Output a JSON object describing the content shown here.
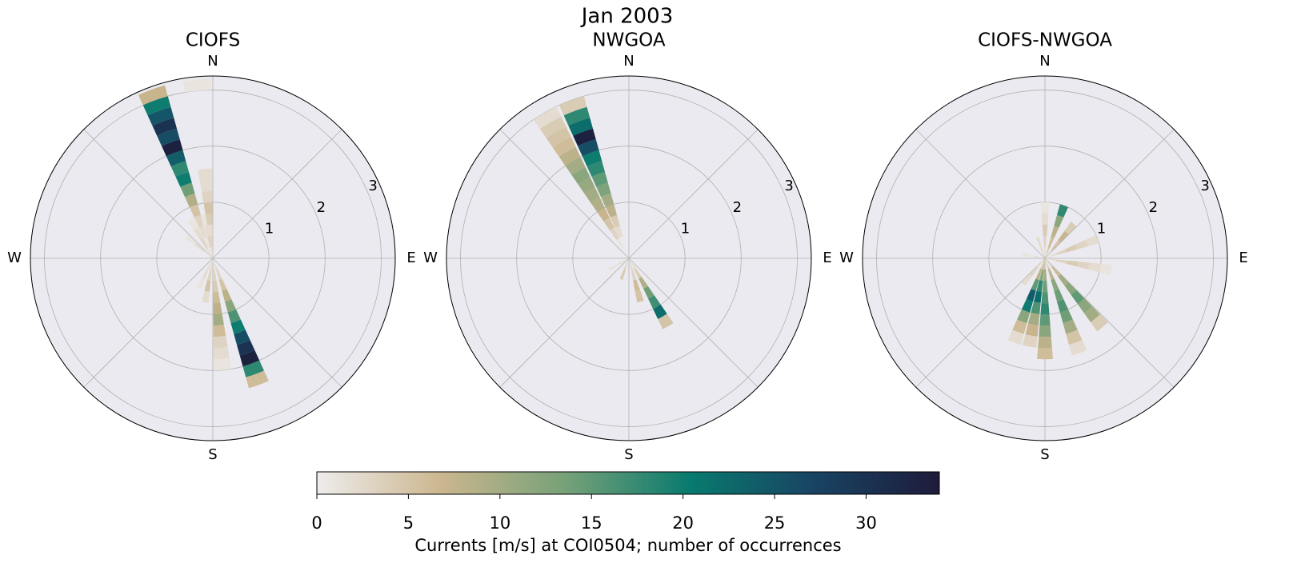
{
  "chart_data": {
    "type": "polar_histogram",
    "title": "Jan 2003",
    "rlim": [
      0,
      3.25
    ],
    "rticks": [
      1,
      2,
      3
    ],
    "direction_labels": [
      "N",
      "E",
      "S",
      "W"
    ],
    "speed_bins": [
      0,
      0.2,
      0.4,
      0.6,
      0.8,
      1.0,
      1.2,
      1.4,
      1.6,
      1.8,
      2.0,
      2.2,
      2.4,
      2.6,
      2.8,
      3.0,
      3.2
    ],
    "colormap": [
      "#eeecec",
      "#cbb68e",
      "#76a178",
      "#087a6e",
      "#194363",
      "#1e1b3a"
    ],
    "panels": [
      {
        "title": "CIOFS",
        "sectors": [
          {
            "direction": 340,
            "counts": [
              0,
              1,
              2,
              3,
              5,
              9,
              14,
              20,
              18,
              24,
              33,
              26,
              30,
              25,
              20,
              7
            ]
          },
          {
            "direction": 350,
            "counts": [
              2,
              3,
              2,
              1,
              0,
              0,
              0,
              0,
              0,
              0,
              0,
              0,
              0,
              0,
              0,
              0
            ]
          },
          {
            "direction": 355,
            "counts": [
              2,
              3,
              2,
              4,
              5,
              3,
              2,
              2,
              0,
              0,
              0,
              0,
              0,
              0,
              0,
              1
            ]
          },
          {
            "direction": 330,
            "counts": [
              2,
              3,
              2,
              1,
              0,
              0,
              0,
              0,
              0,
              0,
              0,
              0,
              0,
              0,
              0,
              0
            ]
          },
          {
            "direction": 310,
            "counts": [
              1,
              2,
              1,
              0,
              0,
              0,
              0,
              0,
              0,
              0,
              0,
              0,
              0,
              0,
              0,
              0
            ]
          },
          {
            "direction": 160,
            "counts": [
              2,
              3,
              5,
              8,
              12,
              16,
              20,
              26,
              30,
              33,
              18,
              6,
              0,
              0,
              0,
              0
            ]
          },
          {
            "direction": 175,
            "counts": [
              2,
              3,
              4,
              6,
              8,
              10,
              6,
              3,
              2,
              1,
              0,
              0,
              0,
              0,
              0,
              0
            ]
          },
          {
            "direction": 190,
            "counts": [
              2,
              3,
              5,
              2,
              0,
              0,
              0,
              0,
              0,
              0,
              0,
              0,
              0,
              0,
              0,
              0
            ]
          },
          {
            "direction": 205,
            "counts": [
              2,
              2,
              1,
              0,
              0,
              0,
              0,
              0,
              0,
              0,
              0,
              0,
              0,
              0,
              0,
              0
            ]
          }
        ]
      },
      {
        "title": "NWGOA",
        "sectors": [
          {
            "direction": 340,
            "counts": [
              0,
              0,
              2,
              4,
              8,
              10,
              13,
              15,
              18,
              20,
              26,
              33,
              22,
              18,
              4,
              0
            ]
          },
          {
            "direction": 330,
            "counts": [
              0,
              1,
              3,
              5,
              7,
              9,
              10,
              11,
              12,
              10,
              8,
              6,
              5,
              4,
              2,
              0
            ]
          },
          {
            "direction": 150,
            "counts": [
              2,
              4,
              9,
              14,
              17,
              22,
              5,
              0,
              0,
              0,
              0,
              0,
              0,
              0,
              0,
              0
            ]
          },
          {
            "direction": 165,
            "counts": [
              2,
              3,
              6,
              5,
              0,
              0,
              0,
              0,
              0,
              0,
              0,
              0,
              0,
              0,
              0,
              0
            ]
          },
          {
            "direction": 200,
            "counts": [
              3,
              4,
              0,
              0,
              0,
              0,
              0,
              0,
              0,
              0,
              0,
              0,
              0,
              0,
              0,
              0
            ]
          },
          {
            "direction": 240,
            "counts": [
              2,
              1,
              0,
              0,
              0,
              0,
              0,
              0,
              0,
              0,
              0,
              0,
              0,
              0,
              0,
              0
            ]
          }
        ]
      },
      {
        "title": "CIOFS-NWGOA",
        "sectors": [
          {
            "direction": 0,
            "counts": [
              2,
              3,
              4,
              2,
              1,
              0,
              0,
              0,
              0,
              0,
              0,
              0,
              0,
              0,
              0,
              0
            ]
          },
          {
            "direction": 20,
            "counts": [
              5,
              6,
              8,
              12,
              18,
              0,
              0,
              0,
              0,
              0,
              0,
              0,
              0,
              0,
              0,
              0
            ]
          },
          {
            "direction": 40,
            "counts": [
              3,
              5,
              7,
              4,
              0,
              0,
              0,
              0,
              0,
              0,
              0,
              0,
              0,
              0,
              0,
              0
            ]
          },
          {
            "direction": 70,
            "counts": [
              2,
              3,
              4,
              3,
              2,
              0,
              0,
              0,
              0,
              0,
              0,
              0,
              0,
              0,
              0,
              0
            ]
          },
          {
            "direction": 100,
            "counts": [
              2,
              3,
              4,
              3,
              2,
              1,
              0,
              0,
              0,
              0,
              0,
              0,
              0,
              0,
              0,
              0
            ]
          },
          {
            "direction": 140,
            "counts": [
              3,
              6,
              10,
              12,
              15,
              12,
              10,
              4,
              0,
              0,
              0,
              0,
              0,
              0,
              0,
              0
            ]
          },
          {
            "direction": 160,
            "counts": [
              4,
              8,
              12,
              14,
              16,
              14,
              10,
              5,
              2,
              0,
              0,
              0,
              0,
              0,
              0,
              0
            ]
          },
          {
            "direction": 180,
            "counts": [
              5,
              10,
              14,
              16,
              18,
              15,
              12,
              8,
              6,
              0,
              0,
              0,
              0,
              0,
              0,
              0
            ]
          },
          {
            "direction": 190,
            "counts": [
              6,
              12,
              18,
              22,
              16,
              10,
              7,
              3,
              0,
              0,
              0,
              0,
              0,
              0,
              0,
              0
            ]
          },
          {
            "direction": 200,
            "counts": [
              4,
              8,
              15,
              24,
              20,
              12,
              6,
              2,
              0,
              0,
              0,
              0,
              0,
              0,
              0,
              0
            ]
          },
          {
            "direction": 220,
            "counts": [
              2,
              3,
              2,
              0,
              0,
              0,
              0,
              0,
              0,
              0,
              0,
              0,
              0,
              0,
              0,
              0
            ]
          },
          {
            "direction": 280,
            "counts": [
              2,
              1,
              0,
              0,
              0,
              0,
              0,
              0,
              0,
              0,
              0,
              0,
              0,
              0,
              0,
              0
            ]
          },
          {
            "direction": 340,
            "counts": [
              3,
              2,
              0,
              0,
              0,
              0,
              0,
              0,
              0,
              0,
              0,
              0,
              0,
              0,
              0,
              0
            ]
          }
        ]
      }
    ],
    "colorbar": {
      "label": "Currents [m/s] at COI0504; number of occurrences",
      "clim": [
        0,
        34
      ],
      "cticks": [
        0,
        5,
        10,
        15,
        20,
        25,
        30
      ]
    }
  }
}
